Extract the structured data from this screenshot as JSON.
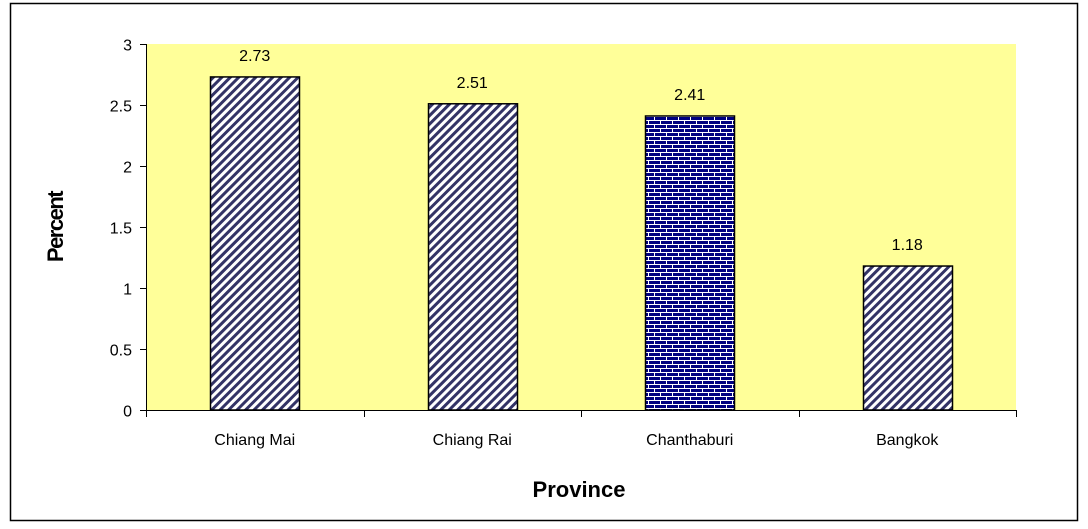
{
  "chart_data": {
    "type": "bar",
    "categories": [
      "Chiang Mai",
      "Chiang Rai",
      "Chanthaburi",
      "Bangkok"
    ],
    "values": [
      2.73,
      2.51,
      2.41,
      1.18
    ],
    "value_labels": [
      "2.73",
      "2.51",
      "2.41",
      "1.18"
    ],
    "xlabel": "Province",
    "ylabel": "Percent",
    "ylim": [
      0,
      3
    ],
    "yticks": [
      0,
      0.5,
      1,
      1.5,
      2,
      2.5,
      3
    ],
    "ytick_labels": [
      "0",
      "0.5",
      "1",
      "1.5",
      "2",
      "2.5",
      "3"
    ],
    "grid": false,
    "legend": "none",
    "bar_patterns": [
      "diagonal-stripes",
      "diagonal-stripes",
      "brick",
      "diagonal-stripes"
    ],
    "colors": {
      "plot_background": "#FFFF99",
      "stripe_light": "#ffffff",
      "stripe_dark": "#333366",
      "brick_fill": "#000080",
      "brick_mortar": "#ffffff",
      "bar_border": "#000000",
      "frame": "#000000"
    }
  }
}
